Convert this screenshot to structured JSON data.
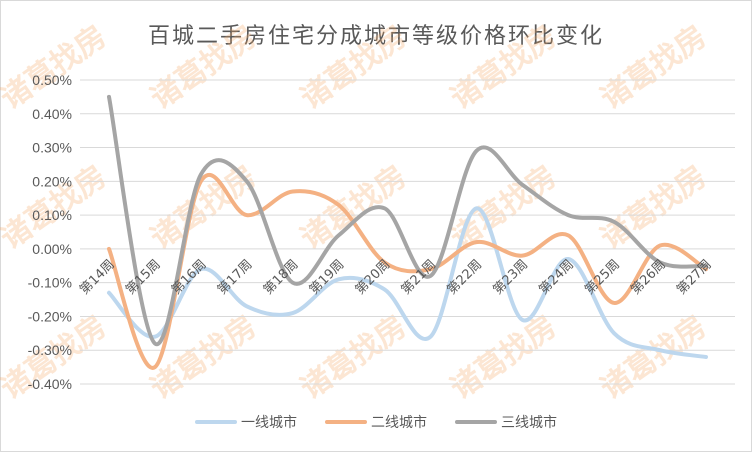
{
  "chart_data": {
    "type": "line",
    "title": "百城二手房住宅分成城市等级价格环比变化",
    "xlabel": "",
    "ylabel": "",
    "ylim": [
      -0.4,
      0.5
    ],
    "y_unit": "%",
    "grid": true,
    "legend_position": "bottom",
    "smooth": true,
    "categories": [
      "第14周",
      "第15周",
      "第16周",
      "第17周",
      "第18周",
      "第19周",
      "第20周",
      "第21周",
      "第22周",
      "第23周",
      "第24周",
      "第25周",
      "第26周",
      "第27周"
    ],
    "y_ticks": [
      "0.50%",
      "0.40%",
      "0.30%",
      "0.20%",
      "0.10%",
      "0.00%",
      "-0.10%",
      "-0.20%",
      "-0.30%",
      "-0.40%"
    ],
    "series": [
      {
        "name": "一线城市",
        "color": "#bdd7ee",
        "values": [
          -0.13,
          -0.26,
          -0.06,
          -0.17,
          -0.19,
          -0.09,
          -0.12,
          -0.26,
          0.12,
          -0.21,
          -0.03,
          -0.25,
          -0.3,
          -0.32
        ]
      },
      {
        "name": "二线城市",
        "color": "#f4b183",
        "values": [
          0.0,
          -0.35,
          0.2,
          0.1,
          0.17,
          0.13,
          -0.04,
          -0.06,
          0.02,
          -0.02,
          0.04,
          -0.16,
          0.01,
          -0.06
        ]
      },
      {
        "name": "三线城市",
        "color": "#a5a5a5",
        "values": [
          0.45,
          -0.28,
          0.22,
          0.2,
          -0.1,
          0.04,
          0.12,
          -0.08,
          0.29,
          0.19,
          0.1,
          0.08,
          -0.04,
          -0.05
        ]
      }
    ]
  },
  "watermark": "诸葛找房"
}
